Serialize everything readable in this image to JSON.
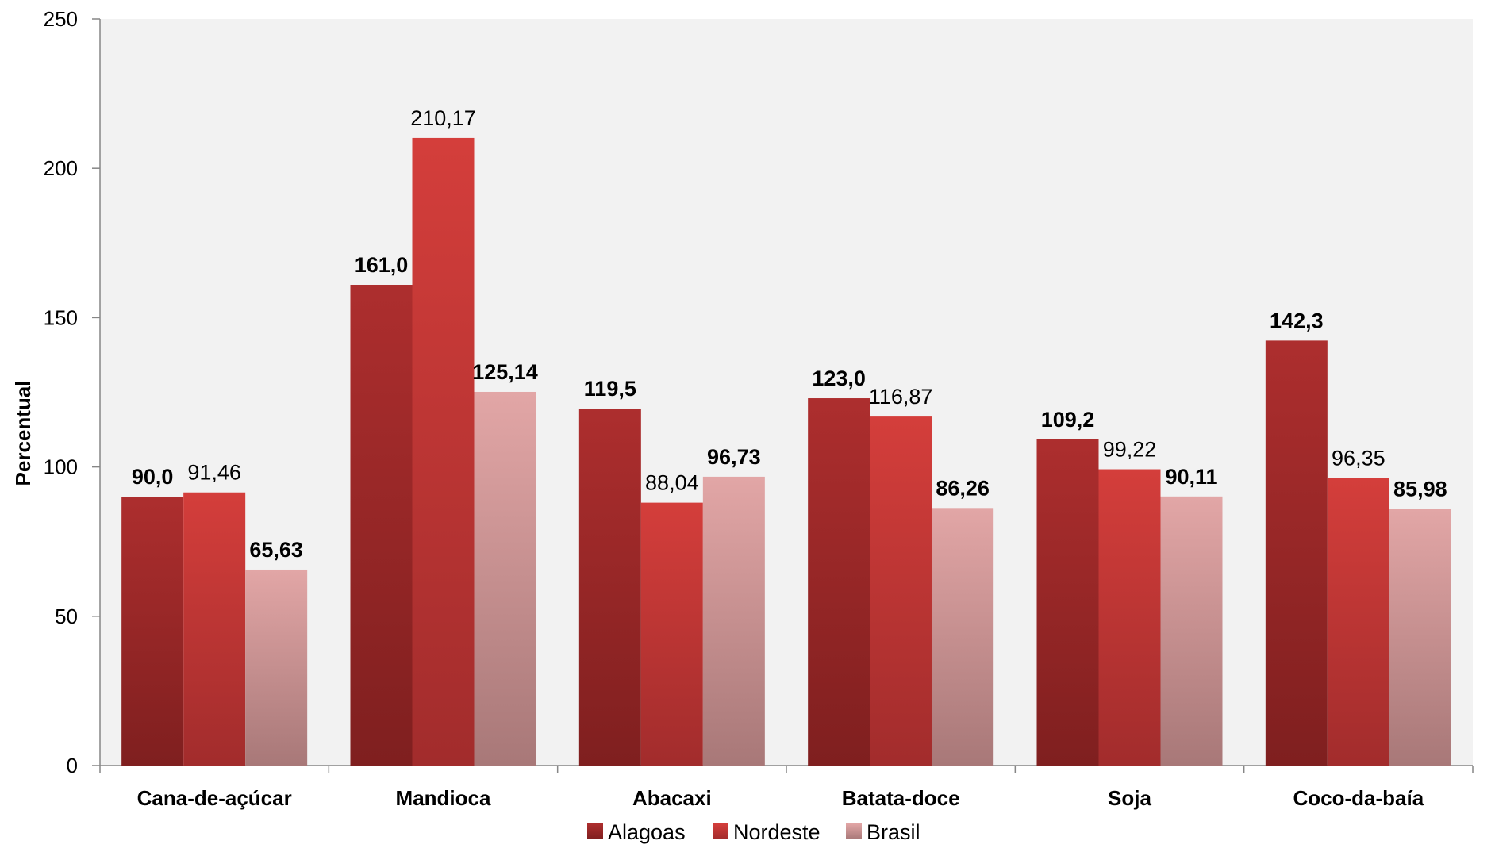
{
  "chart_data": {
    "type": "bar",
    "ylabel": "Percentual",
    "ylim": [
      0,
      250
    ],
    "yticks": [
      "0",
      "50",
      "100",
      "150",
      "200",
      "250"
    ],
    "categories": [
      "Cana-de-açúcar",
      "Mandioca",
      "Abacaxi",
      "Batata-doce",
      "Soja",
      "Coco-da-baía"
    ],
    "legend_position": "bottom",
    "series": [
      {
        "name": "Alagoas",
        "color": "#a52a2a",
        "values": [
          90.0,
          161.0,
          119.5,
          123.0,
          109.2,
          142.3
        ],
        "labels": [
          "90,0",
          "161,0",
          "119,5",
          "123,0",
          "109,2",
          "142,3"
        ],
        "label_bold": [
          true,
          true,
          true,
          true,
          true,
          true
        ]
      },
      {
        "name": "Nordeste",
        "color": "#cf3b3b",
        "values": [
          91.46,
          210.17,
          88.04,
          116.87,
          99.22,
          96.35
        ],
        "labels": [
          "91,46",
          "210,17",
          "88,04",
          "116,87",
          "99,22",
          "96,35"
        ],
        "label_bold": [
          false,
          false,
          false,
          false,
          false,
          false
        ]
      },
      {
        "name": "Brasil",
        "color": "#dba0a0",
        "values": [
          65.63,
          125.14,
          96.73,
          86.26,
          90.11,
          85.98
        ],
        "labels": [
          "65,63",
          "125,14",
          "96,73",
          "86,26",
          "90,11",
          "85,98"
        ],
        "label_bold": [
          true,
          true,
          true,
          true,
          true,
          true
        ]
      }
    ]
  }
}
